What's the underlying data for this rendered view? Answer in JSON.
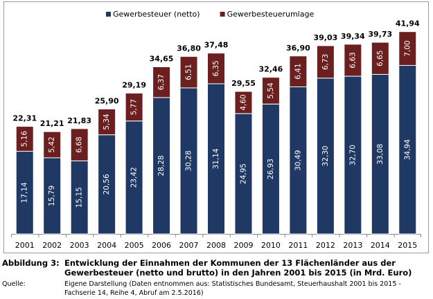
{
  "chart_data": {
    "type": "bar",
    "stacked": true,
    "categories": [
      "2001",
      "2002",
      "2003",
      "2004",
      "2005",
      "2006",
      "2007",
      "2008",
      "2009",
      "2010",
      "2011",
      "2012",
      "2013",
      "2014",
      "2015"
    ],
    "series": [
      {
        "name": "Gewerbesteuer (netto)",
        "color": "#1f3864",
        "values": [
          17.14,
          15.79,
          15.15,
          20.56,
          23.42,
          28.28,
          30.28,
          31.14,
          24.95,
          26.93,
          30.49,
          32.3,
          32.7,
          33.08,
          34.94
        ],
        "labels": [
          "17,14",
          "15,79",
          "15,15",
          "20,56",
          "23,42",
          "28,28",
          "30,28",
          "31,14",
          "24,95",
          "26,93",
          "30,49",
          "32,30",
          "32,70",
          "33,08",
          "34,94"
        ]
      },
      {
        "name": "Gewerbesteuerumlage",
        "color": "#6b1f1f",
        "values": [
          5.16,
          5.42,
          6.68,
          5.34,
          5.77,
          6.37,
          6.51,
          6.35,
          4.6,
          5.54,
          6.41,
          6.73,
          6.63,
          6.65,
          7.0
        ],
        "labels": [
          "5,16",
          "5,42",
          "6,68",
          "5,34",
          "5,77",
          "6,37",
          "6,51",
          "6,35",
          "4,60",
          "5,54",
          "6,41",
          "6,73",
          "6,63",
          "6,65",
          "7,00"
        ]
      }
    ],
    "totals": [
      "22,31",
      "21,21",
      "21,83",
      "25,90",
      "29,19",
      "34,65",
      "36,80",
      "37,48",
      "29,55",
      "32,46",
      "36,90",
      "39,03",
      "39,34",
      "39,73",
      "41,94"
    ],
    "legend_position": "top-center",
    "ylim": [
      0,
      45
    ],
    "grid": false
  },
  "caption": {
    "label": "Abbildung 3:",
    "text": "Entwicklung der Einnahmen der Kommunen der 13 Flächenländer aus der Gewerbesteuer (netto und brutto) in den Jahren 2001 bis 2015 (in Mrd. Euro)"
  },
  "source": {
    "label": "Quelle:",
    "text": "Eigene Darstellung (Daten entnommen aus: Statistisches Bundesamt, Steuerhaushalt 2001 bis 2015 - Fachserie 14, Reihe 4, Abruf am 2.5.2016)"
  }
}
